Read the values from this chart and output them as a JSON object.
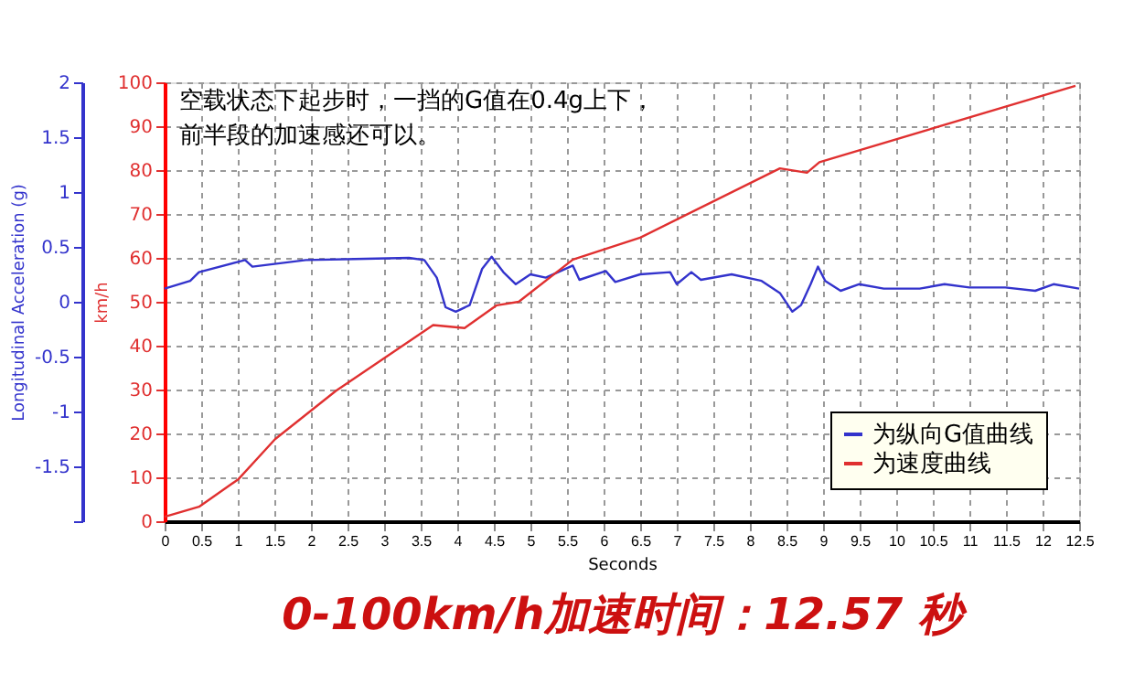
{
  "chart_data": {
    "type": "line",
    "xlabel": "Seconds",
    "ylabel": "Longitudinal Acceleration (g)",
    "y2label": "km/h",
    "x": [
      0,
      0.35,
      0.47,
      1.1,
      1.2,
      1.93,
      2.6,
      3.34,
      3.55,
      3.72,
      3.84,
      3.98,
      4.17,
      4.34,
      4.47,
      4.63,
      4.8,
      5.0,
      5.21,
      5.58,
      5.67,
      6.03,
      6.16,
      6.5,
      6.91,
      7.0,
      7.2,
      7.33,
      7.75,
      8.16,
      8.41,
      8.58,
      8.7,
      8.83,
      8.93,
      9.03,
      9.24,
      9.49,
      9.83,
      10.32,
      10.66,
      11.0,
      11.49,
      11.9,
      12.15,
      12.5
    ],
    "series": [
      {
        "name": "为纵向G值曲线",
        "color": "#3333cc",
        "values": [
          0.12,
          0.19,
          0.27,
          0.38,
          0.32,
          0.38,
          0.39,
          0.4,
          0.38,
          0.22,
          -0.05,
          -0.09,
          -0.03,
          0.3,
          0.41,
          0.27,
          0.16,
          0.25,
          0.22,
          0.33,
          0.2,
          0.28,
          0.18,
          0.25,
          0.27,
          0.16,
          0.27,
          0.2,
          0.25,
          0.19,
          0.08,
          -0.09,
          -0.03,
          0.16,
          0.32,
          0.19,
          0.1,
          0.16,
          0.12,
          0.12,
          0.16,
          0.13,
          0.13,
          0.1,
          0.16,
          0.12
        ]
      },
      {
        "name": "为速度曲线",
        "color": "#e03030",
        "axis": "y2",
        "x": [
          0,
          0.47,
          1.01,
          1.51,
          2.34,
          3.67,
          4.1,
          4.54,
          4.84,
          5.58,
          6.5,
          8.41,
          8.78,
          8.95,
          12.45
        ],
        "values": [
          1,
          3.3,
          9.6,
          18.7,
          29.7,
          44.7,
          44,
          49.2,
          50,
          59.6,
          64.6,
          80.4,
          79.4,
          81.8,
          99.2
        ]
      }
    ],
    "xlim": [
      0,
      12.5
    ],
    "xticks": [
      0,
      0.5,
      1,
      1.5,
      2,
      2.5,
      3,
      3.5,
      4,
      4.5,
      5,
      5.5,
      6,
      6.5,
      7,
      7.5,
      8,
      8.5,
      9,
      9.5,
      10,
      10.5,
      11,
      11.5,
      12,
      12.5
    ],
    "ylim": [
      -2,
      2
    ],
    "yticks": [
      {
        "value": -2,
        "label": null
      },
      -1.5,
      -1,
      -0.5,
      0,
      0.5,
      1,
      1.5,
      2
    ],
    "y2lim": [
      0,
      100
    ],
    "y2ticks": [
      0,
      10,
      20,
      30,
      40,
      50,
      60,
      70,
      80,
      90,
      100
    ],
    "grid": true,
    "legend": "bottom right",
    "annotations": [
      "空载状态下起步时，一挡的G值在0.4g上下，",
      "前半段的加速感还可以。"
    ],
    "title": "0-100km/h加速时间：12.57 秒"
  }
}
